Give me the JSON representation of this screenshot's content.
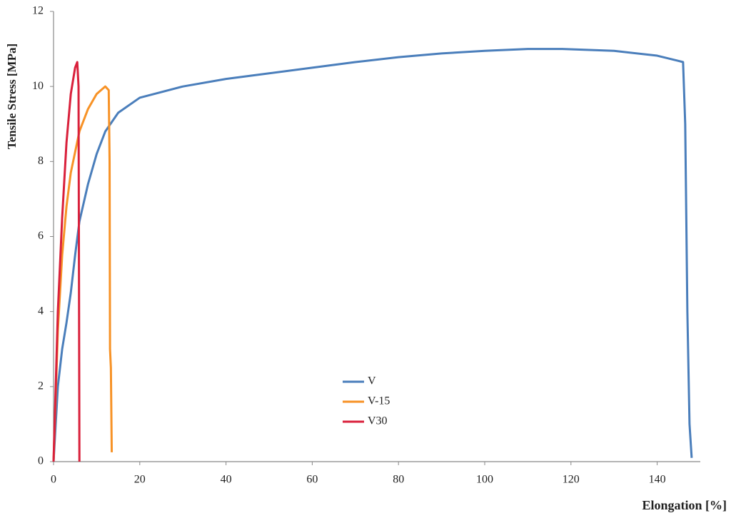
{
  "chart_data": {
    "type": "line",
    "x_label": "Elongation [%]",
    "y_label": "Tensile Stress [MPa]",
    "xlim": [
      0,
      150
    ],
    "xticks": [
      0,
      20,
      40,
      60,
      80,
      100,
      120,
      140
    ],
    "ylim": [
      0,
      12
    ],
    "yticks": [
      0,
      2,
      4,
      6,
      8,
      10,
      12
    ],
    "legend": "lower center",
    "series": [
      {
        "name": "V",
        "color": "#4a7ebb",
        "x": [
          0,
          1,
          2,
          3,
          4,
          5,
          6,
          8,
          10,
          12,
          15,
          20,
          30,
          40,
          50,
          60,
          70,
          80,
          90,
          100,
          110,
          118,
          130,
          140,
          145,
          146,
          146.5,
          147,
          147.5,
          148
        ],
        "values": [
          0,
          2,
          3,
          3.7,
          4.5,
          5.5,
          6.4,
          7.4,
          8.2,
          8.8,
          9.3,
          9.7,
          10.0,
          10.2,
          10.35,
          10.5,
          10.65,
          10.78,
          10.88,
          10.95,
          11.0,
          11.0,
          10.95,
          10.82,
          10.68,
          10.65,
          9,
          4,
          1,
          0.1
        ]
      },
      {
        "name": "V-15",
        "color": "#f79226",
        "x": [
          0,
          1,
          2,
          3,
          4,
          6,
          8,
          10,
          12,
          12.8,
          13,
          13.1,
          13.3,
          13.5
        ],
        "values": [
          0,
          3.5,
          5.5,
          6.8,
          7.7,
          8.8,
          9.4,
          9.8,
          10.0,
          9.9,
          8,
          3,
          2.5,
          0.25
        ]
      },
      {
        "name": "V30",
        "color": "#d9203b",
        "x": [
          0,
          1,
          2,
          3,
          4,
          5,
          5.5,
          5.8,
          5.9,
          6
        ],
        "values": [
          0,
          4,
          6.5,
          8.5,
          9.8,
          10.5,
          10.65,
          10,
          5,
          0
        ]
      }
    ]
  }
}
